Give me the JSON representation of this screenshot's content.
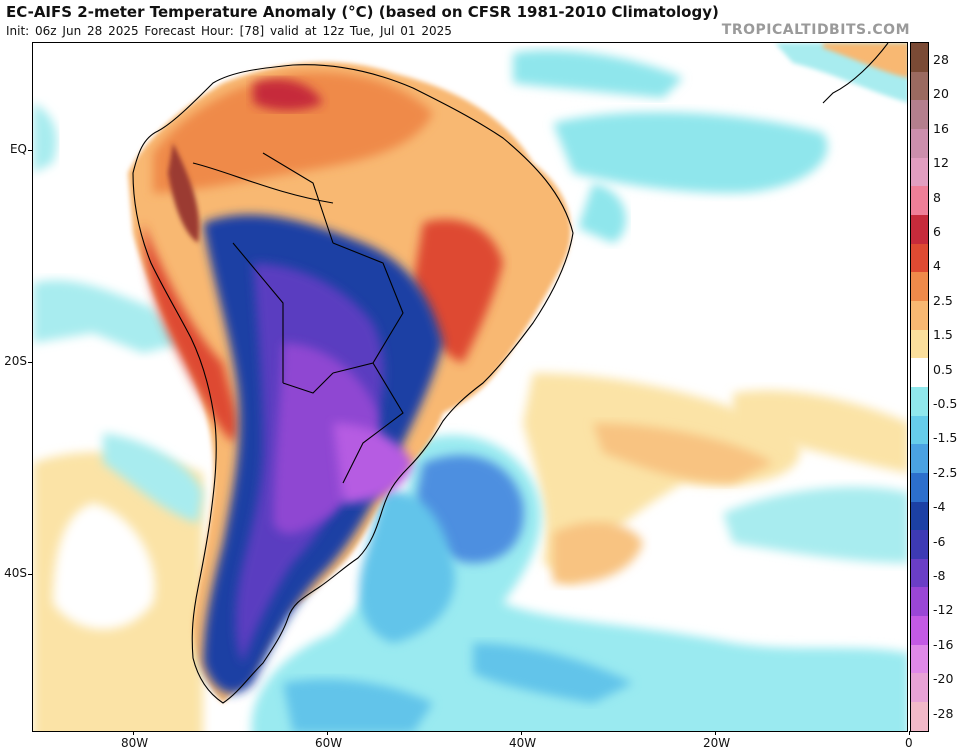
{
  "header": {
    "title": "EC-AIFS 2-meter Temperature Anomaly (°C) (based on CFSR 1981-2010 Climatology)",
    "subtitle": "Init: 06z Jun 28 2025   Forecast Hour: [78]   valid at 12z Tue, Jul 01 2025",
    "credit": "TROPICALTIDBITS.COM"
  },
  "map": {
    "lat_labels": [
      {
        "text": "EQ",
        "lat": 0
      },
      {
        "text": "20S",
        "lat": -20
      },
      {
        "text": "40S",
        "lat": -40
      }
    ],
    "lon_labels": [
      {
        "text": "80W",
        "lon": -80
      },
      {
        "text": "60W",
        "lon": -60
      },
      {
        "text": "40W",
        "lon": -40
      },
      {
        "text": "20W",
        "lon": -20
      },
      {
        "text": "0",
        "lon": 0
      }
    ]
  },
  "legend": {
    "labels": [
      "28",
      "20",
      "16",
      "12",
      "8",
      "6",
      "4",
      "2.5",
      "1.5",
      "0.5",
      "-0.5",
      "-1.5",
      "-2.5",
      "-4",
      "-6",
      "-8",
      "-12",
      "-16",
      "-20",
      "-28"
    ],
    "colors": [
      "#7a4a35",
      "#9b6a60",
      "#b47f8d",
      "#cc8fac",
      "#e29ec0",
      "#ef7f98",
      "#c62b3b",
      "#de4a32",
      "#ef8a4a",
      "#f8b872",
      "#fbdf9c",
      "#ffffff",
      "#90e8ec",
      "#66cdea",
      "#4aa2e2",
      "#2c6fcc",
      "#1c40a4",
      "#3d3ab4",
      "#6a3ec6",
      "#9a46d6",
      "#c45ae4",
      "#e089e8",
      "#e8a2d6",
      "#f2b9c8"
    ]
  }
}
